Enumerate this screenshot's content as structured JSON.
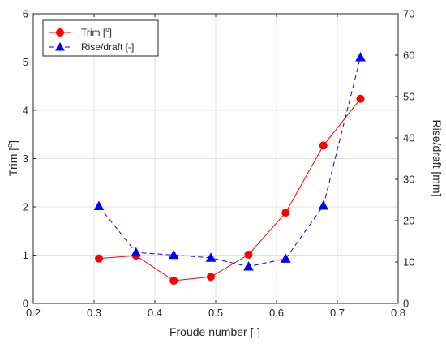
{
  "chart_data": {
    "type": "line",
    "xlabel": "Froude number [-]",
    "ylabel_left_base": "Trim [",
    "ylabel_left_sup": "o",
    "ylabel_left_end": "]",
    "ylabel_right": "Rise/draft [mm]",
    "xlim": [
      0.2,
      0.8
    ],
    "ylim_left": [
      0,
      6
    ],
    "ylim_right": [
      0,
      70
    ],
    "xticks": [
      "0.2",
      "0.3",
      "0.4",
      "0.5",
      "0.6",
      "0.7",
      "0.8"
    ],
    "yticks_left": [
      "0",
      "1",
      "2",
      "3",
      "4",
      "5",
      "6"
    ],
    "yticks_right": [
      "0",
      "10",
      "20",
      "30",
      "40",
      "50",
      "60",
      "70"
    ],
    "grid": true,
    "legend_position": "top-left",
    "series": [
      {
        "name_base": "Trim [",
        "name_sup": "o",
        "name_end": "]",
        "axis": "left",
        "color": "#ff0000",
        "line_style": "solid",
        "marker": "circle",
        "x": [
          0.308,
          0.369,
          0.431,
          0.492,
          0.554,
          0.615,
          0.677,
          0.738
        ],
        "y": [
          0.93,
          0.99,
          0.47,
          0.55,
          1.01,
          1.88,
          3.27,
          4.24
        ]
      },
      {
        "name": "Rise/draft [-]",
        "axis": "right",
        "color": "#0000ff",
        "line_style": "dashed",
        "marker": "triangle",
        "x": [
          0.308,
          0.369,
          0.431,
          0.492,
          0.554,
          0.615,
          0.677,
          0.738
        ],
        "y": [
          23.5,
          12.3,
          11.7,
          11.0,
          8.9,
          10.8,
          23.6,
          59.5
        ]
      }
    ]
  }
}
